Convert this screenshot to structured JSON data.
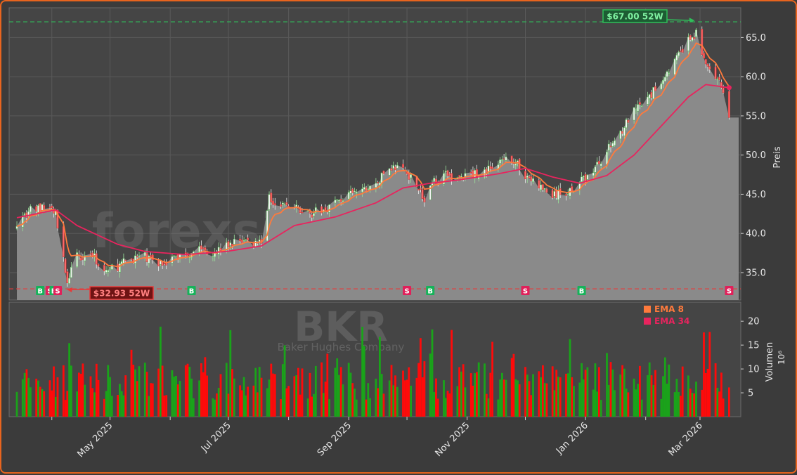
{
  "chart_data": {
    "type": "candlestick",
    "symbol": "BKR",
    "company": "Baker Hughes Company",
    "watermark": "forexsignale.trade",
    "price_axis_label": "Preis",
    "volume_axis_label": "Volumen",
    "volume_unit": "10⁶",
    "price_ylim": [
      31.5,
      68.8
    ],
    "volume_ylim": [
      0,
      24
    ],
    "price_ticks": [
      "35.0",
      "40.0",
      "45.0",
      "50.0",
      "55.0",
      "60.0",
      "65.0"
    ],
    "volume_ticks": [
      "5",
      "10",
      "15",
      "20"
    ],
    "x_ticks": [
      "May 2025",
      "Jul 2025",
      "Sep 2025",
      "Nov 2025",
      "Jan 2026",
      "Mar 2026"
    ],
    "high_52w": {
      "value": 67.0,
      "label": "$67.00 52W",
      "date": "2026-02-27"
    },
    "low_52w": {
      "value": 32.93,
      "label": "$32.93 52W",
      "date": "2025-04-08"
    },
    "legend": [
      {
        "name": "EMA 8",
        "color": "#ff7a3c"
      },
      {
        "name": "EMA 34",
        "color": "#e8245e"
      }
    ],
    "signals": [
      {
        "date": "2025-03-26",
        "type": "B"
      },
      {
        "date": "2025-03-31",
        "type": "S"
      },
      {
        "date": "2025-04-02",
        "type": "B"
      },
      {
        "date": "2025-04-04",
        "type": "S"
      },
      {
        "date": "2025-06-12",
        "type": "B"
      },
      {
        "date": "2025-10-01",
        "type": "S"
      },
      {
        "date": "2025-10-13",
        "type": "B"
      },
      {
        "date": "2025-12-01",
        "type": "S"
      },
      {
        "date": "2025-12-30",
        "type": "B"
      },
      {
        "date": "2026-03-16",
        "type": "S"
      }
    ],
    "price_path": [
      [
        "2025-03-14",
        41.5
      ],
      [
        "2025-03-21",
        43.0
      ],
      [
        "2025-03-31",
        43.3
      ],
      [
        "2025-04-03",
        42.5
      ],
      [
        "2025-04-07",
        36.5
      ],
      [
        "2025-04-09",
        34.0
      ],
      [
        "2025-04-14",
        37.0
      ],
      [
        "2025-04-21",
        37.5
      ],
      [
        "2025-04-28",
        35.2
      ],
      [
        "2025-05-05",
        35.8
      ],
      [
        "2025-05-12",
        36.8
      ],
      [
        "2025-05-19",
        37.0
      ],
      [
        "2025-05-26",
        36.2
      ],
      [
        "2025-06-02",
        36.8
      ],
      [
        "2025-06-09",
        37.4
      ],
      [
        "2025-06-16",
        38.2
      ],
      [
        "2025-06-23",
        37.6
      ],
      [
        "2025-06-30",
        38.4
      ],
      [
        "2025-07-07",
        39.2
      ],
      [
        "2025-07-14",
        38.8
      ],
      [
        "2025-07-18",
        39.2
      ],
      [
        "2025-07-22",
        44.5
      ],
      [
        "2025-07-28",
        43.8
      ],
      [
        "2025-08-04",
        43.2
      ],
      [
        "2025-08-11",
        42.6
      ],
      [
        "2025-08-18",
        42.8
      ],
      [
        "2025-08-25",
        44.0
      ],
      [
        "2025-09-01",
        44.8
      ],
      [
        "2025-09-08",
        45.5
      ],
      [
        "2025-09-15",
        46.2
      ],
      [
        "2025-09-22",
        48.5
      ],
      [
        "2025-09-29",
        48.2
      ],
      [
        "2025-10-06",
        46.5
      ],
      [
        "2025-10-10",
        44.0
      ],
      [
        "2025-10-14",
        46.5
      ],
      [
        "2025-10-20",
        47.5
      ],
      [
        "2025-10-27",
        47.0
      ],
      [
        "2025-11-03",
        47.5
      ],
      [
        "2025-11-10",
        48.0
      ],
      [
        "2025-11-17",
        48.8
      ],
      [
        "2025-11-24",
        49.6
      ],
      [
        "2025-12-01",
        47.5
      ],
      [
        "2025-12-08",
        46.0
      ],
      [
        "2025-12-15",
        44.8
      ],
      [
        "2025-12-22",
        45.2
      ],
      [
        "2025-12-29",
        46.5
      ],
      [
        "2026-01-05",
        48.0
      ],
      [
        "2026-01-12",
        50.5
      ],
      [
        "2026-01-19",
        53.0
      ],
      [
        "2026-01-26",
        55.5
      ],
      [
        "2026-02-02",
        57.0
      ],
      [
        "2026-02-09",
        59.5
      ],
      [
        "2026-02-16",
        62.0
      ],
      [
        "2026-02-23",
        64.5
      ],
      [
        "2026-02-27",
        65.5
      ],
      [
        "2026-03-04",
        61.5
      ],
      [
        "2026-03-09",
        59.5
      ],
      [
        "2026-03-13",
        58.5
      ],
      [
        "2026-03-16",
        54.4
      ]
    ],
    "ema34_path": [
      [
        "2025-03-14",
        42.0
      ],
      [
        "2025-04-03",
        43.0
      ],
      [
        "2025-04-14",
        41.0
      ],
      [
        "2025-05-05",
        38.6
      ],
      [
        "2025-05-19",
        37.7
      ],
      [
        "2025-06-09",
        37.3
      ],
      [
        "2025-06-30",
        37.7
      ],
      [
        "2025-07-18",
        38.4
      ],
      [
        "2025-08-04",
        41.0
      ],
      [
        "2025-08-25",
        42.1
      ],
      [
        "2025-09-15",
        43.9
      ],
      [
        "2025-09-29",
        45.8
      ],
      [
        "2025-10-13",
        46.4
      ],
      [
        "2025-10-27",
        46.8
      ],
      [
        "2025-11-17",
        47.6
      ],
      [
        "2025-12-01",
        48.3
      ],
      [
        "2025-12-15",
        47.2
      ],
      [
        "2025-12-29",
        46.4
      ],
      [
        "2026-01-12",
        47.4
      ],
      [
        "2026-01-26",
        50.0
      ],
      [
        "2026-02-09",
        53.7
      ],
      [
        "2026-02-23",
        57.4
      ],
      [
        "2026-03-04",
        59.0
      ],
      [
        "2026-03-16",
        58.6
      ]
    ]
  }
}
